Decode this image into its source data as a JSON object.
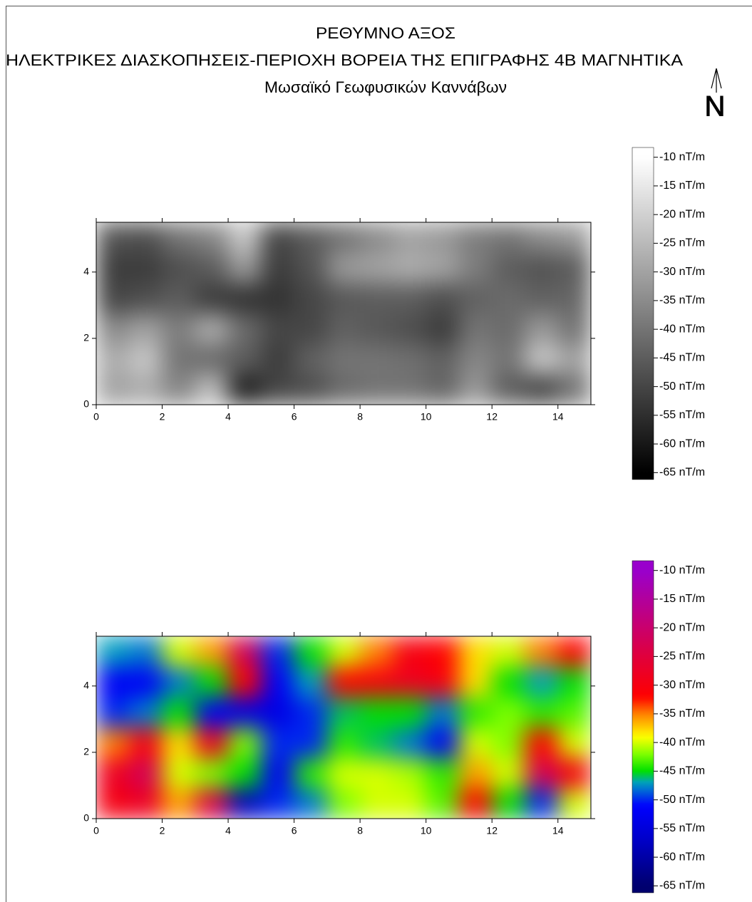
{
  "header": {
    "title": "ΡΕΘΥΜΝΟ ΑΞΟΣ",
    "subtitle": "ΗΛΕΚΤΡΙΚΕΣ ΔΙΑΣΚΟΠΗΣΕΙΣ-ΠΕΡΙΟΧΗ ΒΟΡΕΙΑ ΤΗΣ ΕΠΙΓΡΑΦΗΣ 4Β ΜΑΓΝΗΤΙΚΑ",
    "caption": "Μωσαϊκό Γεωφυσικών Καννάβων",
    "north": "N"
  },
  "chart_data": [
    {
      "type": "heatmap",
      "x": [
        0.5,
        1.5,
        2.5,
        3.5,
        4.5,
        5.5,
        6.5,
        7.5,
        8.5,
        9.5,
        10.5,
        11.5,
        12.5,
        13.5,
        14.5
      ],
      "y": [
        0.46,
        1.38,
        2.29,
        3.21,
        4.13,
        5.04
      ],
      "z": [
        [
          -30,
          -28,
          -36,
          -24,
          -58,
          -50,
          -48,
          -42,
          -40,
          -40,
          -43,
          -32,
          -45,
          -50,
          -40
        ],
        [
          -28,
          -22,
          -40,
          -42,
          -45,
          -52,
          -44,
          -40,
          -40,
          -41,
          -44,
          -36,
          -40,
          -22,
          -30
        ],
        [
          -35,
          -30,
          -38,
          -28,
          -42,
          -50,
          -50,
          -44,
          -46,
          -48,
          -52,
          -40,
          -42,
          -32,
          -40
        ],
        [
          -50,
          -48,
          -45,
          -52,
          -54,
          -54,
          -50,
          -46,
          -45,
          -45,
          -48,
          -44,
          -42,
          -44,
          -43
        ],
        [
          -52,
          -52,
          -48,
          -45,
          -32,
          -52,
          -47,
          -32,
          -30,
          -28,
          -30,
          -38,
          -45,
          -47,
          -45
        ],
        [
          -47,
          -48,
          -40,
          -36,
          -22,
          -50,
          -45,
          -40,
          -35,
          -30,
          -32,
          -38,
          -40,
          -35,
          -32
        ]
      ],
      "xlim": [
        0,
        15
      ],
      "ylim": [
        0,
        5.5
      ],
      "xticks": [
        0,
        2,
        4,
        6,
        8,
        10,
        12,
        14
      ],
      "yticks": [
        0,
        2,
        4
      ],
      "zlim": [
        -66.2,
        -8.3
      ],
      "zticks": [
        {
          "value": -10,
          "label": "-10 nT/m"
        },
        {
          "value": -15,
          "label": "-15 nT/m"
        },
        {
          "value": -20,
          "label": "-20 nT/m"
        },
        {
          "value": -25,
          "label": "-25 nT/m"
        },
        {
          "value": -30,
          "label": "-30 nT/m"
        },
        {
          "value": -35,
          "label": "-35 nT/m"
        },
        {
          "value": -40,
          "label": "-40 nT/m"
        },
        {
          "value": -45,
          "label": "-45 nT/m"
        },
        {
          "value": -50,
          "label": "-50 nT/m"
        },
        {
          "value": -55,
          "label": "-55 nT/m"
        },
        {
          "value": -60,
          "label": "-60 nT/m"
        },
        {
          "value": -65,
          "label": "-65 nT/m"
        }
      ],
      "colormap": [
        {
          "value": -65,
          "color": "#000000"
        },
        {
          "value": -10,
          "color": "#ffffff"
        }
      ]
    },
    {
      "type": "heatmap",
      "x": [
        0.5,
        1.5,
        2.5,
        3.5,
        4.5,
        5.5,
        6.5,
        7.5,
        8.5,
        9.5,
        10.5,
        11.5,
        12.5,
        13.5,
        14.5
      ],
      "y": [
        0.46,
        1.38,
        2.29,
        3.21,
        4.13,
        5.04
      ],
      "z": [
        [
          -30,
          -28,
          -36,
          -24,
          -58,
          -50,
          -48,
          -42,
          -40,
          -40,
          -43,
          -32,
          -45,
          -50,
          -40
        ],
        [
          -28,
          -22,
          -40,
          -42,
          -45,
          -52,
          -44,
          -40,
          -40,
          -41,
          -44,
          -36,
          -40,
          -22,
          -30
        ],
        [
          -35,
          -30,
          -38,
          -28,
          -42,
          -50,
          -50,
          -44,
          -46,
          -48,
          -52,
          -40,
          -42,
          -32,
          -40
        ],
        [
          -50,
          -48,
          -45,
          -52,
          -54,
          -54,
          -50,
          -46,
          -45,
          -45,
          -48,
          -44,
          -42,
          -44,
          -43
        ],
        [
          -52,
          -52,
          -48,
          -45,
          -32,
          -52,
          -47,
          -32,
          -30,
          -28,
          -30,
          -38,
          -45,
          -47,
          -45
        ],
        [
          -47,
          -48,
          -40,
          -36,
          -22,
          -50,
          -45,
          -40,
          -35,
          -30,
          -32,
          -38,
          -40,
          -35,
          -32
        ]
      ],
      "xlim": [
        0,
        15
      ],
      "ylim": [
        0,
        5.5
      ],
      "xticks": [
        0,
        2,
        4,
        6,
        8,
        10,
        12,
        14
      ],
      "yticks": [
        0,
        2,
        4
      ],
      "zlim": [
        -66.2,
        -8.3
      ],
      "zticks": [
        {
          "value": -10,
          "label": "-10 nT/m"
        },
        {
          "value": -15,
          "label": "-15 nT/m"
        },
        {
          "value": -20,
          "label": "-20 nT/m"
        },
        {
          "value": -25,
          "label": "-25 nT/m"
        },
        {
          "value": -30,
          "label": "-30 nT/m"
        },
        {
          "value": -35,
          "label": "-35 nT/m"
        },
        {
          "value": -40,
          "label": "-40 nT/m"
        },
        {
          "value": -45,
          "label": "-45 nT/m"
        },
        {
          "value": -50,
          "label": "-50 nT/m"
        },
        {
          "value": -55,
          "label": "-55 nT/m"
        },
        {
          "value": -60,
          "label": "-60 nT/m"
        },
        {
          "value": -65,
          "label": "-65 nT/m"
        }
      ],
      "colormap": [
        {
          "value": -65,
          "color": "#00006e"
        },
        {
          "value": -57,
          "color": "#0000c8"
        },
        {
          "value": -51,
          "color": "#0000ff"
        },
        {
          "value": -47,
          "color": "#00a0c0"
        },
        {
          "value": -45,
          "color": "#00e000"
        },
        {
          "value": -42,
          "color": "#80ff00"
        },
        {
          "value": -39,
          "color": "#ffff00"
        },
        {
          "value": -35,
          "color": "#ff8000"
        },
        {
          "value": -32,
          "color": "#ff0000"
        },
        {
          "value": -25,
          "color": "#e0003c"
        },
        {
          "value": -18,
          "color": "#c00080"
        },
        {
          "value": -10,
          "color": "#9900cc"
        }
      ]
    }
  ]
}
